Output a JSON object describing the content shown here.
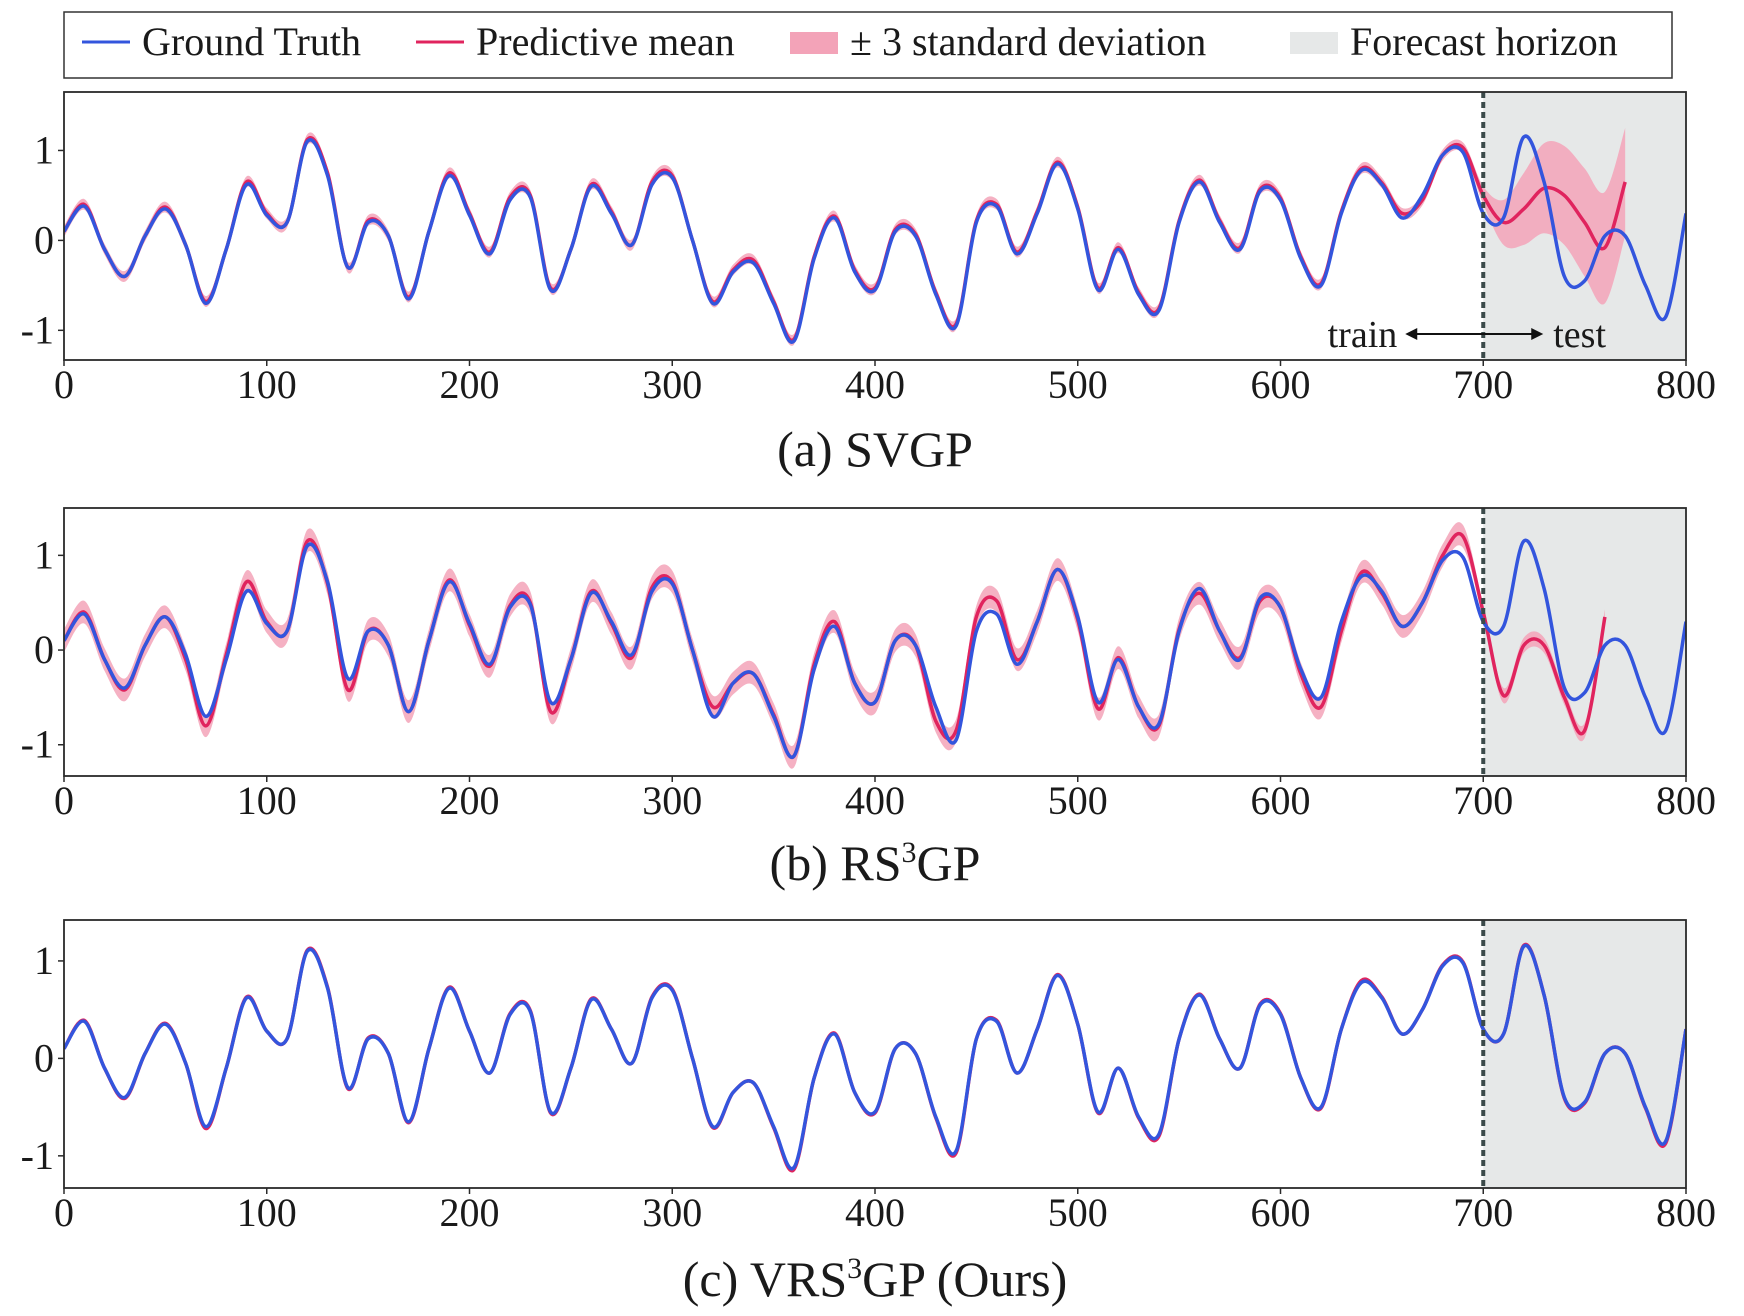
{
  "legend": {
    "ground_truth": "Ground Truth",
    "predictive_mean": "Predictive mean",
    "std_band": "± 3 standard deviation",
    "forecast_horizon": "Forecast horizon"
  },
  "colors": {
    "ground_truth": "#3355dd",
    "predictive_mean": "#e0245e",
    "band": "#f3a3b8",
    "forecast_bg": "#e6e8e8",
    "divider": "#3b4a4a",
    "axes": "#2a2a2a"
  },
  "annotations": {
    "train": "train",
    "test": "test"
  },
  "chart_data": [
    {
      "type": "line",
      "title": "(a) SVGP",
      "caption_prefix": "(a) SVGP",
      "caption_sup": "",
      "caption_suffix": "",
      "xlim": [
        0,
        800
      ],
      "ylim": [
        -1.33,
        1.65
      ],
      "xticks": [
        0,
        100,
        200,
        300,
        400,
        500,
        600,
        700,
        800
      ],
      "yticks": [
        -1,
        0,
        1
      ],
      "ytick_labels": [
        "-1",
        "0",
        "1"
      ],
      "train_test_split": 700,
      "forecast_horizon": [
        700,
        800
      ],
      "show_train_test_annotation": true,
      "series": [
        {
          "name": "Ground Truth",
          "x_start": 0,
          "x_step": 10,
          "values": [
            0.1,
            0.38,
            -0.1,
            -0.4,
            0.05,
            0.35,
            -0.05,
            -0.7,
            -0.1,
            0.62,
            0.28,
            0.2,
            1.1,
            0.72,
            -0.3,
            0.2,
            0.05,
            -0.65,
            0.1,
            0.72,
            0.28,
            -0.15,
            0.45,
            0.48,
            -0.55,
            -0.1,
            0.6,
            0.3,
            -0.05,
            0.62,
            0.7,
            0.0,
            -0.7,
            -0.35,
            -0.25,
            -0.7,
            -1.12,
            -0.2,
            0.25,
            -0.35,
            -0.55,
            0.1,
            0.05,
            -0.6,
            -0.95,
            0.2,
            0.38,
            -0.15,
            0.3,
            0.85,
            0.35,
            -0.55,
            -0.1,
            -0.6,
            -0.78,
            0.2,
            0.65,
            0.2,
            -0.1,
            0.55,
            0.45,
            -0.2,
            -0.5,
            0.3,
            0.78,
            0.62,
            0.25,
            0.5,
            0.95,
            0.98,
            0.3,
            0.25,
            1.15,
            0.65,
            -0.4,
            -0.45,
            0.05,
            0.05,
            -0.5,
            -0.85,
            0.3
          ]
        },
        {
          "name": "Predictive mean",
          "x_start": 0,
          "x_step": 10,
          "values": [
            0.1,
            0.4,
            -0.1,
            -0.4,
            0.05,
            0.37,
            -0.05,
            -0.68,
            -0.1,
            0.65,
            0.3,
            0.2,
            1.12,
            0.75,
            -0.3,
            0.22,
            0.05,
            -0.63,
            0.1,
            0.75,
            0.3,
            -0.13,
            0.48,
            0.5,
            -0.53,
            -0.1,
            0.62,
            0.32,
            -0.05,
            0.65,
            0.72,
            0.0,
            -0.68,
            -0.33,
            -0.22,
            -0.68,
            -1.1,
            -0.18,
            0.27,
            -0.33,
            -0.53,
            0.12,
            0.07,
            -0.58,
            -0.93,
            0.22,
            0.4,
            -0.13,
            0.32,
            0.87,
            0.37,
            -0.53,
            -0.08,
            -0.58,
            -0.76,
            0.22,
            0.67,
            0.22,
            -0.08,
            0.57,
            0.47,
            -0.18,
            -0.48,
            0.32,
            0.8,
            0.64,
            0.3,
            0.45,
            0.95,
            1.03,
            0.5,
            0.2,
            0.35,
            0.58,
            0.5,
            0.2,
            -0.08,
            0.65
          ]
        },
        {
          "name": "± 3 standard deviation",
          "band_width_train": 0.06,
          "band_width_forecast": [
            0.1,
            0.25,
            0.4,
            0.5,
            0.55,
            0.6,
            0.62,
            0.6,
            0.62,
            0.62
          ]
        }
      ]
    },
    {
      "type": "line",
      "title": "(b) RS3GP",
      "caption_prefix": "(b) RS",
      "caption_sup": "3",
      "caption_suffix": "GP",
      "xlim": [
        0,
        800
      ],
      "ylim": [
        -1.33,
        1.5
      ],
      "xticks": [
        0,
        100,
        200,
        300,
        400,
        500,
        600,
        700,
        800
      ],
      "yticks": [
        -1,
        0,
        1
      ],
      "ytick_labels": [
        "-1",
        "0",
        "1"
      ],
      "train_test_split": 700,
      "forecast_horizon": [
        700,
        800
      ],
      "show_train_test_annotation": false,
      "series": [
        {
          "name": "Ground Truth",
          "x_start": 0,
          "x_step": 10,
          "values": [
            0.1,
            0.38,
            -0.1,
            -0.4,
            0.05,
            0.35,
            -0.05,
            -0.7,
            -0.1,
            0.62,
            0.28,
            0.2,
            1.1,
            0.72,
            -0.3,
            0.2,
            0.05,
            -0.65,
            0.1,
            0.72,
            0.28,
            -0.15,
            0.45,
            0.48,
            -0.55,
            -0.1,
            0.6,
            0.3,
            -0.05,
            0.62,
            0.7,
            0.0,
            -0.7,
            -0.35,
            -0.25,
            -0.7,
            -1.12,
            -0.2,
            0.25,
            -0.35,
            -0.55,
            0.1,
            0.05,
            -0.6,
            -0.95,
            0.2,
            0.38,
            -0.15,
            0.3,
            0.85,
            0.35,
            -0.55,
            -0.1,
            -0.6,
            -0.78,
            0.2,
            0.65,
            0.2,
            -0.1,
            0.55,
            0.45,
            -0.2,
            -0.5,
            0.3,
            0.78,
            0.62,
            0.25,
            0.5,
            0.95,
            0.98,
            0.3,
            0.25,
            1.15,
            0.65,
            -0.4,
            -0.45,
            0.05,
            0.05,
            -0.5,
            -0.85,
            0.3
          ]
        },
        {
          "name": "Predictive mean",
          "x_start": 0,
          "x_step": 10,
          "values": [
            0.1,
            0.4,
            -0.1,
            -0.42,
            0.05,
            0.35,
            -0.1,
            -0.8,
            -0.05,
            0.72,
            0.3,
            0.2,
            1.15,
            0.7,
            -0.42,
            0.2,
            0.05,
            -0.65,
            0.1,
            0.74,
            0.26,
            -0.17,
            0.47,
            0.5,
            -0.65,
            -0.1,
            0.62,
            0.28,
            -0.08,
            0.66,
            0.72,
            0.0,
            -0.6,
            -0.35,
            -0.25,
            -0.68,
            -1.12,
            -0.15,
            0.3,
            -0.35,
            -0.55,
            0.1,
            0.05,
            -0.75,
            -0.85,
            0.35,
            0.52,
            -0.1,
            0.3,
            0.85,
            0.32,
            -0.62,
            -0.08,
            -0.6,
            -0.8,
            0.22,
            0.6,
            0.2,
            -0.08,
            0.52,
            0.45,
            -0.25,
            -0.6,
            0.2,
            0.82,
            0.6,
            0.25,
            0.5,
            1.0,
            1.2,
            0.4,
            -0.48,
            0.05,
            0.05,
            -0.5,
            -0.85,
            0.35
          ]
        },
        {
          "name": "± 3 standard deviation",
          "band_width_train": 0.12,
          "band_width_forecast": [
            0.08,
            0.08,
            0.08,
            0.08,
            0.08,
            0.08,
            0.08,
            0.08,
            0.08,
            0.08
          ]
        }
      ]
    },
    {
      "type": "line",
      "title": "(c) VRS3GP (Ours)",
      "caption_prefix": "(c) VRS",
      "caption_sup": "3",
      "caption_suffix": "GP (Ours)",
      "xlim": [
        0,
        800
      ],
      "ylim": [
        -1.33,
        1.42
      ],
      "xticks": [
        0,
        100,
        200,
        300,
        400,
        500,
        600,
        700,
        800
      ],
      "yticks": [
        -1,
        0,
        1
      ],
      "ytick_labels": [
        "-1",
        "0",
        "1"
      ],
      "train_test_split": 700,
      "forecast_horizon": [
        700,
        800
      ],
      "show_train_test_annotation": false,
      "series": [
        {
          "name": "Ground Truth",
          "x_start": 0,
          "x_step": 10,
          "values": [
            0.1,
            0.38,
            -0.1,
            -0.4,
            0.05,
            0.35,
            -0.05,
            -0.7,
            -0.1,
            0.62,
            0.28,
            0.2,
            1.1,
            0.72,
            -0.3,
            0.2,
            0.05,
            -0.65,
            0.1,
            0.72,
            0.28,
            -0.15,
            0.45,
            0.48,
            -0.55,
            -0.1,
            0.6,
            0.3,
            -0.05,
            0.62,
            0.7,
            0.0,
            -0.7,
            -0.35,
            -0.25,
            -0.7,
            -1.12,
            -0.2,
            0.25,
            -0.35,
            -0.55,
            0.1,
            0.05,
            -0.6,
            -0.95,
            0.2,
            0.38,
            -0.15,
            0.3,
            0.85,
            0.35,
            -0.55,
            -0.1,
            -0.6,
            -0.78,
            0.2,
            0.65,
            0.2,
            -0.1,
            0.55,
            0.45,
            -0.2,
            -0.5,
            0.3,
            0.78,
            0.62,
            0.25,
            0.5,
            0.95,
            0.98,
            0.3,
            0.25,
            1.15,
            0.65,
            -0.4,
            -0.45,
            0.05,
            0.05,
            -0.5,
            -0.85,
            0.3
          ]
        },
        {
          "name": "Predictive mean",
          "x_start": 0,
          "x_step": 10,
          "values": [
            0.1,
            0.39,
            -0.1,
            -0.41,
            0.05,
            0.36,
            -0.05,
            -0.72,
            -0.1,
            0.63,
            0.28,
            0.2,
            1.11,
            0.73,
            -0.31,
            0.21,
            0.05,
            -0.66,
            0.1,
            0.73,
            0.28,
            -0.15,
            0.46,
            0.49,
            -0.56,
            -0.1,
            0.61,
            0.3,
            -0.05,
            0.63,
            0.71,
            0.0,
            -0.71,
            -0.35,
            -0.25,
            -0.71,
            -1.14,
            -0.2,
            0.26,
            -0.35,
            -0.56,
            0.1,
            0.05,
            -0.61,
            -0.97,
            0.2,
            0.39,
            -0.15,
            0.3,
            0.86,
            0.35,
            -0.56,
            -0.1,
            -0.61,
            -0.8,
            0.2,
            0.66,
            0.2,
            -0.1,
            0.56,
            0.46,
            -0.2,
            -0.51,
            0.3,
            0.8,
            0.63,
            0.25,
            0.5,
            0.96,
            0.99,
            0.3,
            0.25,
            1.16,
            0.65,
            -0.41,
            -0.46,
            0.05,
            0.05,
            -0.51,
            -0.87,
            0.3
          ]
        },
        {
          "name": "± 3 standard deviation",
          "band_width_train": 0.015,
          "band_width_forecast": [
            0.02,
            0.02,
            0.02,
            0.02,
            0.02,
            0.02,
            0.02,
            0.02,
            0.02,
            0.02
          ]
        }
      ]
    }
  ]
}
